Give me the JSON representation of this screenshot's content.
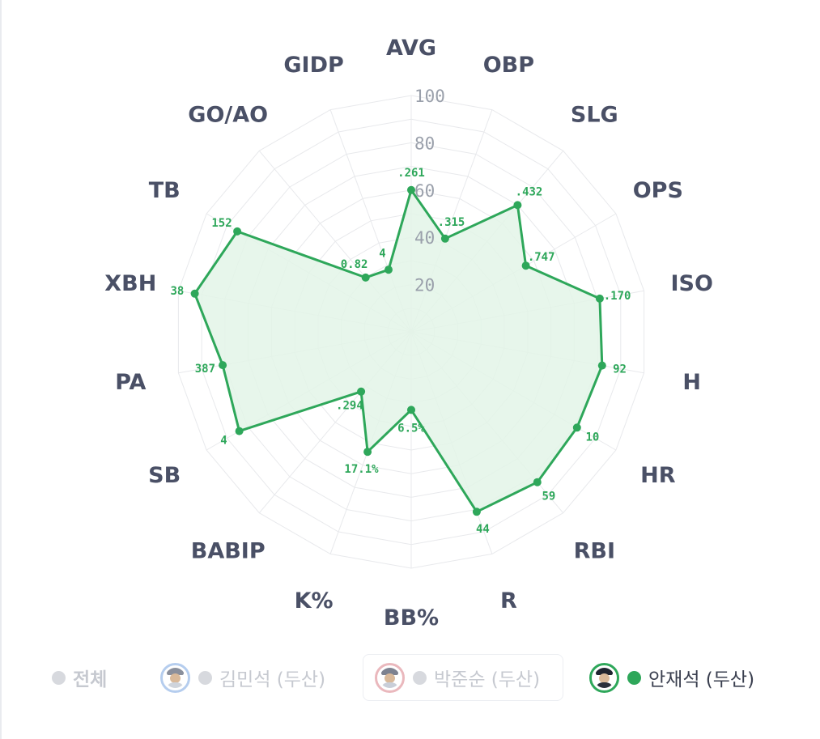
{
  "chart_data": {
    "type": "radar",
    "axes": [
      "AVG",
      "OBP",
      "SLG",
      "OPS",
      "ISO",
      "H",
      "HR",
      "RBI",
      "R",
      "BB%",
      "K%",
      "BABIP",
      "SB",
      "PA",
      "XBH",
      "TB",
      "GO/AO",
      "GIDP"
    ],
    "radial_ticks": [
      "20",
      "40",
      "60",
      "80",
      "100"
    ],
    "rlim": [
      0,
      100
    ],
    "grid": true,
    "series": [
      {
        "name": "안재석 (두산)",
        "color": "#2ea75a",
        "scores": [
          60,
          42,
          70,
          56,
          81,
          82,
          81,
          83,
          81,
          33,
          54,
          33,
          84,
          81,
          93,
          85,
          30,
          28
        ],
        "value_labels": [
          ".261",
          ".315",
          ".432",
          ".747",
          ".170",
          "92",
          "10",
          "59",
          "44",
          "6.5%",
          "17.1%",
          ".294",
          "4",
          "387",
          "38",
          "152",
          "0.82",
          "4"
        ]
      }
    ]
  },
  "legend": {
    "items": [
      {
        "label": "전체",
        "state": "inactive",
        "dot_color": "#d7d9de"
      },
      {
        "label": "김민석 (두산)",
        "state": "inactive",
        "dot_color": "#d7d9de",
        "avatar_ring": "#b5cdee"
      },
      {
        "label": "박준순 (두산)",
        "state": "inactive",
        "dot_color": "#d7d9de",
        "avatar_ring": "#eab8bd"
      },
      {
        "label": "안재석 (두산)",
        "state": "active",
        "dot_color": "#2ea75a",
        "avatar_ring": "#2ea75a"
      }
    ]
  },
  "colors": {
    "series_line": "#2ea75a",
    "series_fill": "#e3f4e7",
    "grid": "#e8e9ec",
    "axis_label": "#4a5066",
    "tick_label": "#9aa0ab"
  }
}
